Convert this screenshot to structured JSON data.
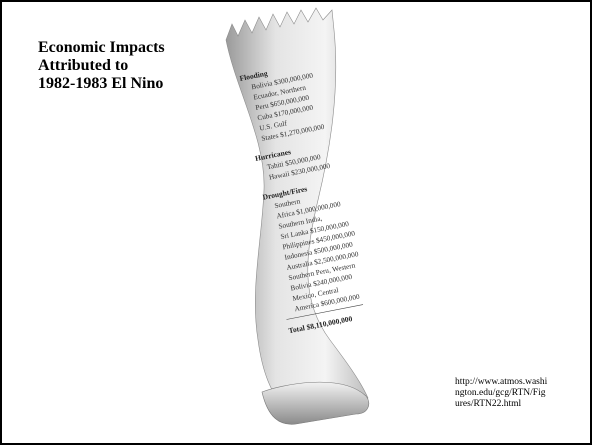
{
  "title": [
    "Economic Impacts",
    "Attributed to",
    "1982-1983 El Nino"
  ],
  "receipt": {
    "sections": [
      {
        "heading": "Flooding",
        "items": [
          [
            "Bolivia $300,000,000"
          ],
          [
            "Ecuador, Northern",
            "Peru $650,000,000"
          ],
          [
            "Cuba $170,000,000"
          ],
          [
            "U.S. Gulf",
            "States $1,270,000,000"
          ]
        ]
      },
      {
        "heading": "Hurricanes",
        "items": [
          [
            "Tahiti $50,000,000"
          ],
          [
            "Hawaii $230,000,000"
          ]
        ]
      },
      {
        "heading": "Drought/Fires",
        "items": [
          [
            "Southern",
            "Africa $1,000,000,000"
          ],
          [
            "Southern India,",
            "Sri Lanka $150,000,000"
          ],
          [
            "Philippines $450,000,000"
          ],
          [
            "Indonesia $500,000,000"
          ],
          [
            "Australia $2,500,000,000"
          ],
          [
            "Southern Peru, Western",
            "Bolivia $240,000,000"
          ],
          [
            "Mexico, Central",
            "America $600,000,000"
          ]
        ]
      }
    ],
    "total": "Total $8,110,000,000"
  },
  "source": [
    "http://www.atmos.washi",
    "ngton.edu/gcg/RTN/Fig",
    "ures/RTN22.html"
  ]
}
